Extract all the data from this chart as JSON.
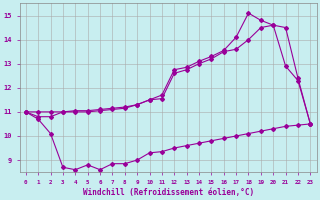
{
  "xlabel": "Windchill (Refroidissement éolien,°C)",
  "line_color": "#990099",
  "bg_color": "#c8eef0",
  "grid_color": "#aaaaaa",
  "line1_x": [
    0,
    1,
    2,
    3,
    4,
    5,
    6,
    7,
    8,
    9,
    10,
    11,
    12,
    13,
    14,
    15,
    16,
    17,
    18,
    19,
    20,
    21,
    22,
    23
  ],
  "line1_y": [
    11.0,
    10.8,
    10.8,
    11.0,
    11.05,
    11.05,
    11.1,
    11.15,
    11.2,
    11.3,
    11.5,
    11.7,
    12.75,
    12.85,
    13.1,
    13.3,
    13.55,
    14.1,
    15.1,
    14.8,
    14.6,
    12.9,
    12.3,
    10.5
  ],
  "line2_x": [
    0,
    1,
    2,
    3,
    4,
    5,
    6,
    7,
    8,
    9,
    10,
    11,
    12,
    13,
    14,
    15,
    16,
    17,
    18,
    19,
    20,
    21,
    22,
    23
  ],
  "line2_y": [
    11.0,
    11.0,
    11.0,
    11.0,
    11.0,
    11.0,
    11.05,
    11.1,
    11.15,
    11.3,
    11.5,
    11.55,
    12.6,
    12.75,
    13.0,
    13.2,
    13.5,
    13.6,
    14.0,
    14.5,
    14.6,
    14.5,
    12.4,
    10.5
  ],
  "line3_x": [
    0,
    1,
    2,
    3,
    4,
    5,
    6,
    7,
    8,
    9,
    10,
    11,
    12,
    13,
    14,
    15,
    16,
    17,
    18,
    19,
    20,
    21,
    22,
    23
  ],
  "line3_y": [
    11.0,
    10.7,
    10.1,
    8.7,
    8.6,
    8.8,
    8.6,
    8.85,
    8.85,
    9.0,
    9.3,
    9.35,
    9.5,
    9.6,
    9.7,
    9.8,
    9.9,
    10.0,
    10.1,
    10.2,
    10.3,
    10.4,
    10.45,
    10.5
  ],
  "xlim": [
    -0.5,
    23.5
  ],
  "ylim": [
    8.5,
    15.5
  ],
  "xtick_labels": [
    "0",
    "1",
    "2",
    "3",
    "4",
    "5",
    "6",
    "7",
    "8",
    "9",
    "10",
    "11",
    "12",
    "13",
    "14",
    "15",
    "16",
    "17",
    "18",
    "19",
    "20",
    "21",
    "22",
    "23"
  ],
  "ytick_labels": [
    "9",
    "10",
    "11",
    "12",
    "13",
    "14",
    "15"
  ]
}
